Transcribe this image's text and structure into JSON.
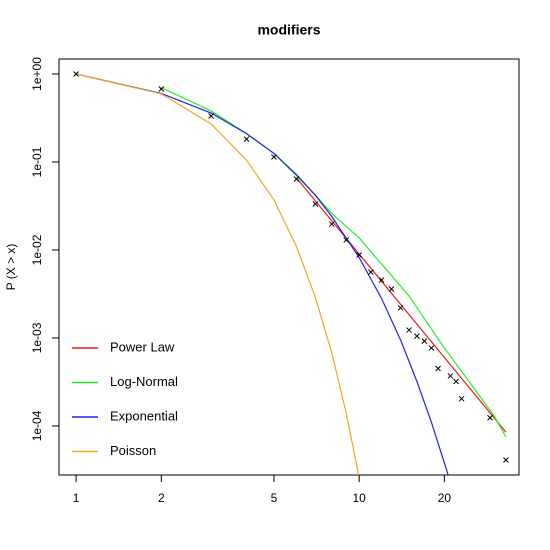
{
  "chart_data": {
    "type": "line",
    "title": "modifiers",
    "y_label": "P (X > x)",
    "x_log": true,
    "y_log": true,
    "xlim": [
      0.87,
      36.7
    ],
    "ylim": [
      2.77e-05,
      1.48
    ],
    "xticks": [
      1,
      2,
      5,
      10,
      20
    ],
    "yticks": [
      {
        "value": 1,
        "label": "1e+00"
      },
      {
        "value": 0.1,
        "label": "1e-01"
      },
      {
        "value": 0.01,
        "label": "1e-02"
      },
      {
        "value": 0.001,
        "label": "1e-03"
      },
      {
        "value": 0.0001,
        "label": "1e-04"
      }
    ],
    "legend": "bottom-left",
    "points": {
      "color": "#000000",
      "x": [
        1,
        2,
        3,
        4,
        5,
        6,
        7,
        8,
        9,
        10,
        11,
        12,
        13,
        14,
        15,
        16,
        17,
        18,
        19,
        21,
        22,
        23,
        29,
        33
      ],
      "values": [
        1,
        0.675,
        0.333,
        0.182,
        0.114,
        0.064,
        0.0333,
        0.0197,
        0.013,
        0.00877,
        0.0056,
        0.00455,
        0.0036,
        0.0022,
        0.00123,
        0.00105,
        0.00092,
        0.00077,
        0.00045,
        0.00037,
        0.00032,
        0.000204,
        0.000124,
        4.1e-05
      ]
    },
    "series": [
      {
        "name": "Power Law",
        "color": "#e8191c",
        "x": [
          6,
          33
        ],
        "values": [
          0.066,
          8.5e-05
        ]
      },
      {
        "name": "Log-Normal",
        "color": "#22ee22",
        "x": [
          2,
          3,
          4,
          5,
          6,
          7,
          8,
          10,
          15,
          20,
          30,
          33
        ],
        "values": [
          0.7,
          0.38,
          0.21,
          0.125,
          0.07,
          0.042,
          0.026,
          0.0137,
          0.003,
          0.00077,
          0.00013,
          7.5e-05
        ]
      },
      {
        "name": "Exponential",
        "color": "#2222dd",
        "x": [
          1,
          2,
          3,
          4,
          5,
          6,
          7,
          8,
          10,
          12,
          14,
          16,
          18,
          20,
          21
        ],
        "values": [
          1,
          0.6,
          0.36,
          0.21,
          0.125,
          0.072,
          0.042,
          0.024,
          0.0082,
          0.0028,
          0.00095,
          0.00032,
          0.00011,
          3.8e-05,
          2.3e-05
        ]
      },
      {
        "name": "Poisson",
        "color": "#f5a623",
        "x": [
          1,
          2,
          3,
          4,
          5,
          6,
          7,
          8,
          9,
          10
        ],
        "values": [
          1,
          0.594,
          0.27,
          0.105,
          0.037,
          0.011,
          0.0029,
          0.00068,
          0.00014,
          2.6e-05
        ]
      }
    ]
  }
}
